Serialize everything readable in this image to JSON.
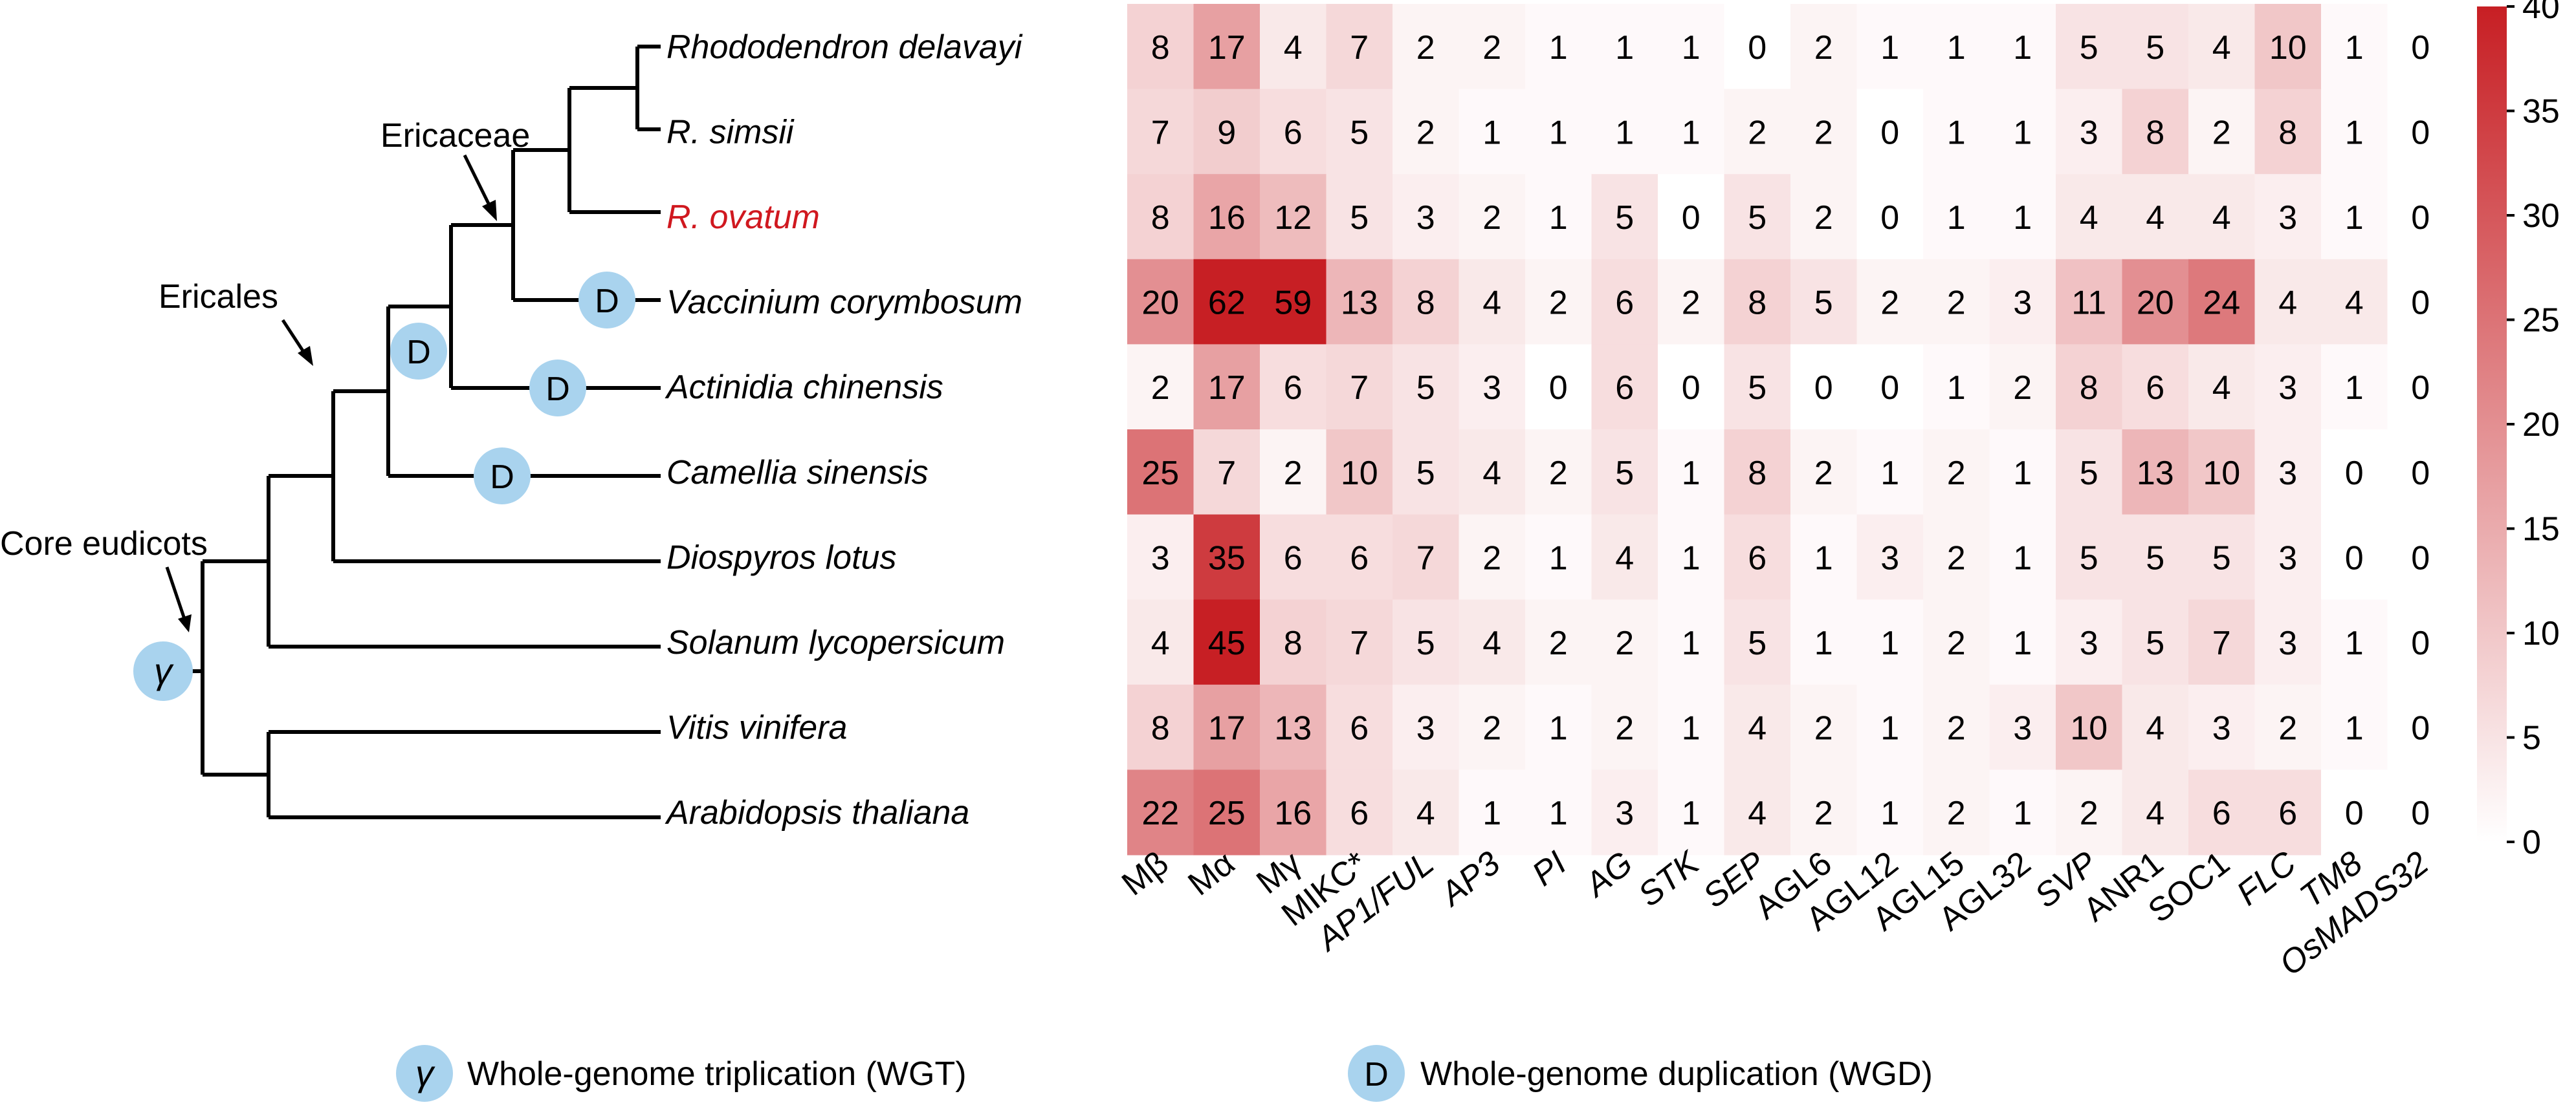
{
  "chart_data": {
    "type": "heatmap",
    "rows": [
      "Rhododendron delavayi",
      "R. simsii",
      "R. ovatum",
      "Vaccinium corymbosum",
      "Actinidia chinensis",
      "Camellia sinensis",
      "Diospyros lotus",
      "Solanum lycopersicum",
      "Vitis vinifera",
      "Arabidopsis thaliana"
    ],
    "highlight_row": "R. ovatum",
    "highlight_color": "#d0181f",
    "columns": [
      "Mβ",
      "Mα",
      "Mγ",
      "MIKC*",
      "AP1/FUL",
      "AP3",
      "PI",
      "AG",
      "STK",
      "SEP",
      "AGL6",
      "AGL12",
      "AGL15",
      "AGL32",
      "SVP",
      "ANR1",
      "SOC1",
      "FLC",
      "TM8",
      "OsMADS32"
    ],
    "italic_columns": [
      "AP1/FUL",
      "AP3",
      "PI",
      "AG",
      "STK",
      "SEP",
      "SVP",
      "FLC",
      "TM8",
      "OsMADS32"
    ],
    "values": [
      [
        8,
        17,
        4,
        7,
        2,
        2,
        1,
        1,
        1,
        0,
        2,
        1,
        1,
        1,
        5,
        5,
        4,
        10,
        1,
        0
      ],
      [
        7,
        9,
        6,
        5,
        2,
        1,
        1,
        1,
        1,
        2,
        2,
        0,
        1,
        1,
        3,
        8,
        2,
        8,
        1,
        0
      ],
      [
        8,
        16,
        12,
        5,
        3,
        2,
        1,
        5,
        0,
        5,
        2,
        0,
        1,
        1,
        4,
        4,
        4,
        3,
        1,
        0
      ],
      [
        20,
        62,
        59,
        13,
        8,
        4,
        2,
        6,
        2,
        8,
        5,
        2,
        2,
        3,
        11,
        20,
        24,
        4,
        4,
        0
      ],
      [
        2,
        17,
        6,
        7,
        5,
        3,
        0,
        6,
        0,
        5,
        0,
        0,
        1,
        2,
        8,
        6,
        4,
        3,
        1,
        0
      ],
      [
        25,
        7,
        2,
        10,
        5,
        4,
        2,
        5,
        1,
        8,
        2,
        1,
        2,
        1,
        5,
        13,
        10,
        3,
        0,
        0
      ],
      [
        3,
        35,
        6,
        6,
        7,
        2,
        1,
        4,
        1,
        6,
        1,
        3,
        2,
        1,
        5,
        5,
        5,
        3,
        0,
        0
      ],
      [
        4,
        45,
        8,
        7,
        5,
        4,
        2,
        2,
        1,
        5,
        1,
        1,
        2,
        1,
        3,
        5,
        7,
        3,
        1,
        0
      ],
      [
        8,
        17,
        13,
        6,
        3,
        2,
        1,
        2,
        1,
        4,
        2,
        1,
        2,
        3,
        10,
        4,
        3,
        2,
        1,
        0
      ],
      [
        22,
        25,
        16,
        6,
        4,
        1,
        1,
        3,
        1,
        4,
        2,
        1,
        2,
        1,
        2,
        4,
        6,
        6,
        0,
        0
      ]
    ],
    "colorbar": {
      "min": 0,
      "max": 40,
      "ticks": [
        0,
        5,
        10,
        15,
        20,
        25,
        30,
        35,
        40
      ],
      "color_low": "#ffffff",
      "color_high": "#c71f24"
    },
    "tree": {
      "clade_labels": [
        "Ericaceae",
        "Ericales",
        "Core eudicots"
      ],
      "wgt_symbol": "γ",
      "wgd_symbol": "D",
      "wgd_count": 4,
      "marker_color": "#a9d3ee"
    },
    "legend": [
      {
        "symbol": "γ",
        "label": "Whole-genome triplication (WGT)"
      },
      {
        "symbol": "D",
        "label": "Whole-genome duplication (WGD)"
      }
    ]
  }
}
